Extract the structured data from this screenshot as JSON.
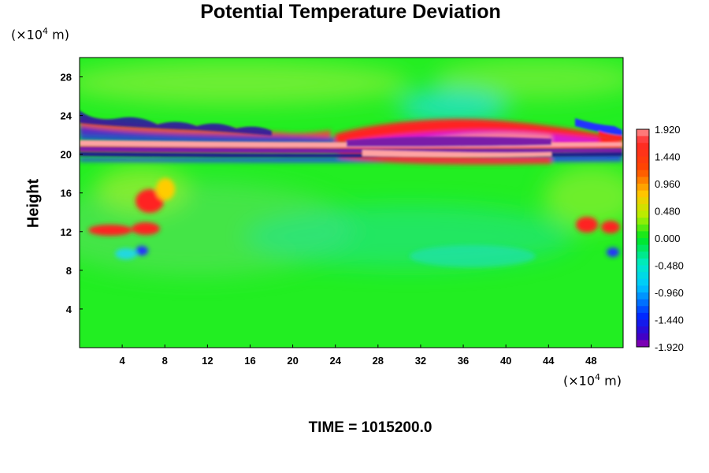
{
  "chart_data": {
    "type": "heatmap",
    "title": "Potential Temperature Deviation",
    "ylabel": "Height",
    "x_unit": "(×10",
    "x_unit_exp": "4",
    "x_unit_tail": " m)",
    "y_unit": "(×10",
    "y_unit_exp": "4",
    "y_unit_tail": " m)",
    "xlim": [
      0,
      51
    ],
    "ylim": [
      0,
      30
    ],
    "x_ticks": [
      4,
      8,
      12,
      16,
      20,
      24,
      28,
      32,
      36,
      40,
      44,
      48
    ],
    "y_ticks": [
      4,
      8,
      12,
      16,
      20,
      24,
      28
    ],
    "colorbar": {
      "min": -1.92,
      "max": 1.92,
      "tick_labels": [
        "1.920",
        "1.440",
        "0.960",
        "0.480",
        "0.000",
        "-0.480",
        "-0.960",
        "-1.440",
        "-1.920"
      ],
      "tick_values": [
        1.92,
        1.44,
        0.96,
        0.48,
        0.0,
        -0.48,
        -0.96,
        -1.44,
        -1.92
      ]
    },
    "features": [
      {
        "x": [
          0,
          51
        ],
        "y": [
          21.0,
          20.4
        ],
        "value": 1.92,
        "description": "warm band"
      },
      {
        "x": [
          0,
          51
        ],
        "y": [
          20.1,
          19.7
        ],
        "value": -1.92,
        "description": "cold band"
      },
      {
        "x": [
          25,
          47
        ],
        "y": [
          22.2,
          21.4
        ],
        "value": 1.6,
        "description": "warm layer"
      },
      {
        "x": [
          26,
          46
        ],
        "y": [
          21.2,
          20.8
        ],
        "value": -1.92,
        "description": "cold layer"
      },
      {
        "x": [
          0,
          18
        ],
        "y": [
          23.2,
          22.6
        ],
        "value": -1.4,
        "description": "wave pattern upper left"
      },
      {
        "x": [
          1,
          7
        ],
        "y": [
          12.4,
          11.6
        ],
        "value": 1.6,
        "description": "warm patches"
      },
      {
        "x": [
          47,
          50
        ],
        "y": [
          13.0,
          11.8
        ],
        "value": 1.5,
        "description": "warm patch right"
      },
      {
        "x": [
          30,
          40
        ],
        "y": [
          26.5,
          24.8
        ],
        "value": -0.5,
        "description": "cool patch top"
      }
    ]
  },
  "footer": {
    "time_label": "TIME = 1015200.0"
  }
}
